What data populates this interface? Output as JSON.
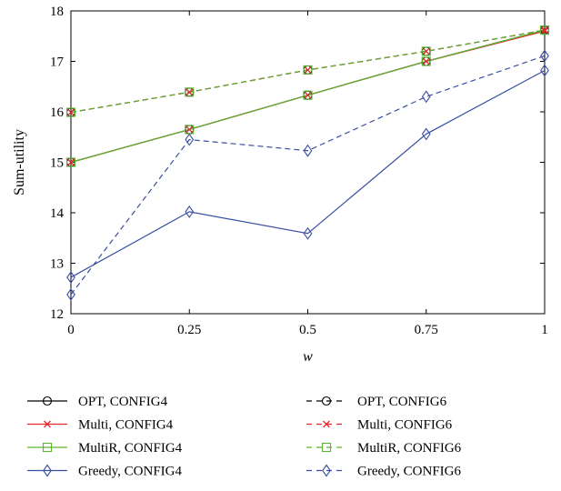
{
  "chart_data": {
    "type": "line",
    "title": "",
    "xlabel": "w",
    "ylabel": "Sum-utility",
    "xlim": [
      0,
      1
    ],
    "ylim": [
      12,
      18
    ],
    "x": [
      0,
      0.25,
      0.5,
      0.75,
      1
    ],
    "x_tick_labels": [
      "0",
      "0.25",
      "0.5",
      "0.75",
      "1"
    ],
    "y_ticks": [
      12,
      13,
      14,
      15,
      16,
      17,
      18
    ],
    "y_tick_labels": [
      "12",
      "13",
      "14",
      "15",
      "16",
      "17",
      "18"
    ],
    "grid": false,
    "legend_position": "bottom",
    "series": [
      {
        "name": "OPT, CONFIG4",
        "values": [
          15.0,
          15.65,
          16.33,
          17.0,
          17.62
        ],
        "color": "#000000",
        "linestyle": "solid",
        "marker": "circle"
      },
      {
        "name": "Multi, CONFIG4",
        "values": [
          15.0,
          15.65,
          16.33,
          17.0,
          17.6
        ],
        "color": "#e8262a",
        "linestyle": "solid",
        "marker": "x"
      },
      {
        "name": "MultiR, CONFIG4",
        "values": [
          15.0,
          15.65,
          16.33,
          17.0,
          17.62
        ],
        "color": "#5ab431",
        "linestyle": "solid",
        "marker": "square"
      },
      {
        "name": "Greedy, CONFIG4",
        "values": [
          12.72,
          14.02,
          13.59,
          15.56,
          16.82
        ],
        "color": "#3a4fa0",
        "linestyle": "solid",
        "marker": "diamond"
      },
      {
        "name": "OPT, CONFIG6",
        "values": [
          15.99,
          16.39,
          16.83,
          17.2,
          17.62
        ],
        "color": "#000000",
        "linestyle": "dashed",
        "marker": "circle"
      },
      {
        "name": "Multi, CONFIG6",
        "values": [
          15.99,
          16.39,
          16.83,
          17.2,
          17.62
        ],
        "color": "#e8262a",
        "linestyle": "dashed",
        "marker": "x"
      },
      {
        "name": "MultiR, CONFIG6",
        "values": [
          15.99,
          16.39,
          16.83,
          17.2,
          17.62
        ],
        "color": "#5ab431",
        "linestyle": "dashed",
        "marker": "square"
      },
      {
        "name": "Greedy, CONFIG6",
        "values": [
          12.38,
          15.45,
          15.23,
          16.3,
          17.11
        ],
        "color": "#3a4fa0",
        "linestyle": "dashed",
        "marker": "diamond"
      }
    ]
  }
}
